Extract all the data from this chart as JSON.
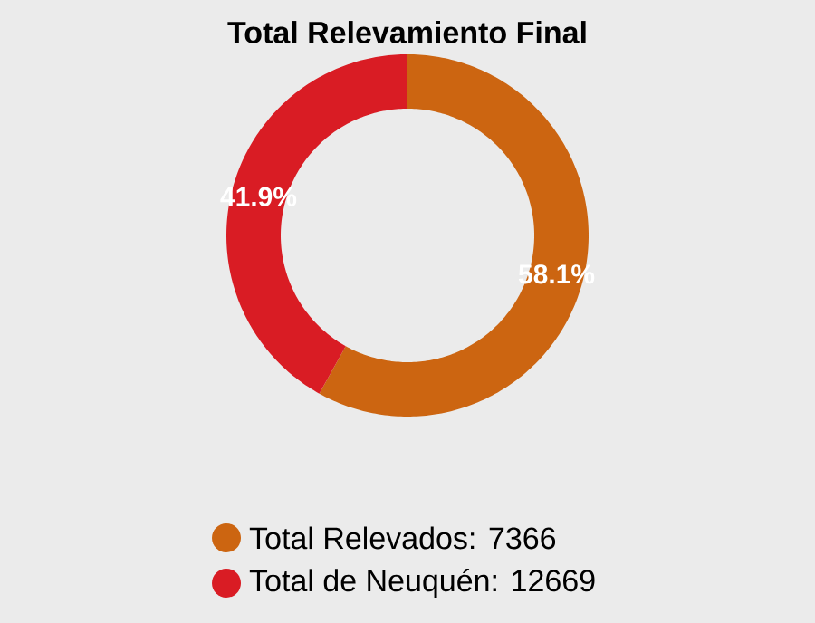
{
  "chart_data": {
    "type": "donut",
    "title": "Total Relevamiento Final",
    "categories": [
      "Total Relevados: 7366",
      "Total de Neuquén: 12669"
    ],
    "values": [
      58.1,
      41.9
    ],
    "colors": [
      "#cc6511",
      "#d91c24"
    ],
    "value_labels": [
      "58.1%",
      "41.9%"
    ],
    "legend": "bottom"
  }
}
